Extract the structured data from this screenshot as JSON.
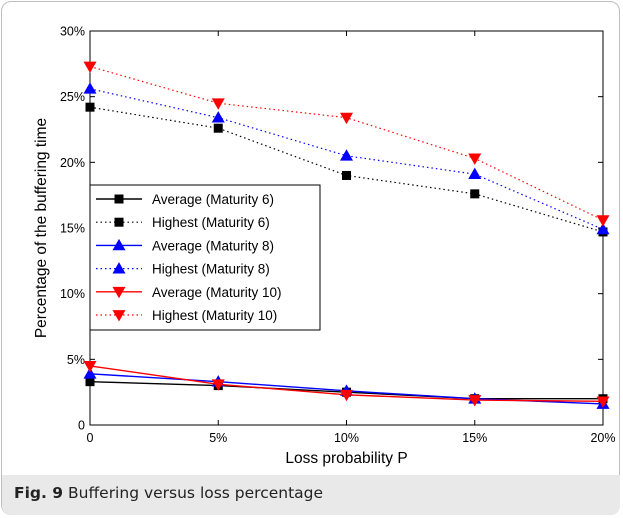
{
  "caption": {
    "label": "Fig. 9",
    "text": "Buffering versus loss percentage"
  },
  "chart_data": {
    "type": "line",
    "title": "",
    "xlabel": "Loss probability P",
    "ylabel": "Percentage of the buffering time",
    "x": [
      0,
      5,
      10,
      15,
      20
    ],
    "x_tick_labels": [
      "0",
      "5%",
      "10%",
      "15%",
      "20%"
    ],
    "ylim": [
      0,
      30
    ],
    "y_ticks": [
      0,
      5,
      10,
      15,
      20,
      25,
      30
    ],
    "y_tick_labels": [
      "0",
      "5%",
      "10%",
      "15%",
      "20%",
      "25%",
      "30%"
    ],
    "grid": false,
    "legend_position": "middle-left",
    "series": [
      {
        "name": "Average (Maturity 6)",
        "values": [
          3.3,
          3.0,
          2.5,
          2.0,
          2.0
        ],
        "color": "#000000",
        "marker": "square",
        "line": "solid"
      },
      {
        "name": "Highest (Maturity 6)",
        "values": [
          24.2,
          22.6,
          19.0,
          17.6,
          14.7
        ],
        "color": "#000000",
        "marker": "square",
        "line": "dotted"
      },
      {
        "name": "Average (Maturity 8)",
        "values": [
          3.9,
          3.3,
          2.6,
          2.0,
          1.6
        ],
        "color": "#0000ff",
        "marker": "triangle-up",
        "line": "solid"
      },
      {
        "name": "Highest (Maturity 8)",
        "values": [
          25.6,
          23.4,
          20.5,
          19.1,
          14.9
        ],
        "color": "#0000ff",
        "marker": "triangle-up",
        "line": "dotted"
      },
      {
        "name": "Average (Maturity 10)",
        "values": [
          4.5,
          3.1,
          2.3,
          1.9,
          1.8
        ],
        "color": "#ff0000",
        "marker": "triangle-down",
        "line": "solid"
      },
      {
        "name": "Highest (Maturity 10)",
        "values": [
          27.3,
          24.5,
          23.4,
          20.3,
          15.6
        ],
        "color": "#ff0000",
        "marker": "triangle-down",
        "line": "dotted"
      }
    ]
  }
}
